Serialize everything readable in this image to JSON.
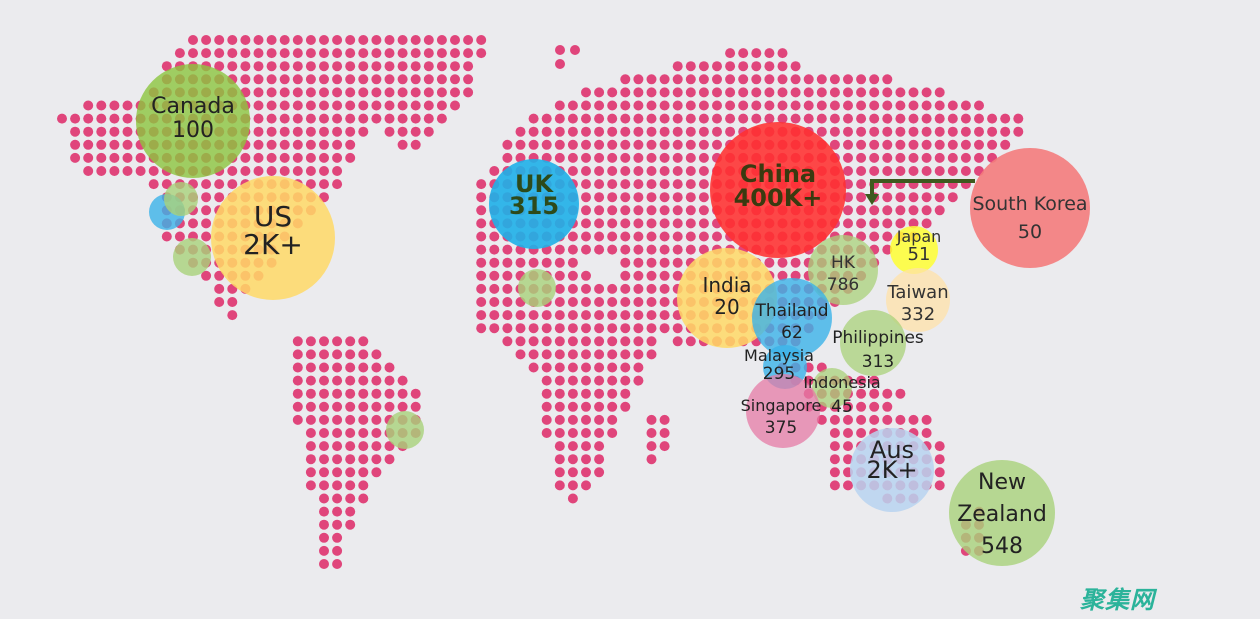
{
  "map": {
    "dot_color": "#e0457b",
    "background": "#ebebee",
    "bubbles": [
      {
        "name": "Canada",
        "value": "100",
        "color": "#8cc63f"
      },
      {
        "name": "US",
        "value": "2K+",
        "color": "#ffd966"
      },
      {
        "name": "UK",
        "value": "315",
        "color": "#1fb0e8"
      },
      {
        "name": "China",
        "value": "400K+",
        "color": "#ff3030"
      },
      {
        "name": "South Korea",
        "value": "50",
        "color": "#f47c7c"
      },
      {
        "name": "India",
        "value": "20",
        "color": "#ffd966"
      },
      {
        "name": "HK",
        "value": "786",
        "color": "#a9d27a"
      },
      {
        "name": "Japan",
        "value": "51",
        "color": "#ffff33"
      },
      {
        "name": "Taiwan",
        "value": "332",
        "color": "#ffe2a8"
      },
      {
        "name": "Thailand",
        "value": "62",
        "color": "#3bb3e8"
      },
      {
        "name": "Philippines",
        "value": "313",
        "color": "#a9d27a"
      },
      {
        "name": "Malaysia",
        "value": "295",
        "color": "#3bb3e8"
      },
      {
        "name": "Indonesia",
        "value": "45",
        "color": "#a9d27a"
      },
      {
        "name": "Singapore",
        "value": "375",
        "color": "#e57ba6"
      },
      {
        "name": "Aus",
        "value": "2K+",
        "color": "#b8d4f0"
      },
      {
        "name": "New Zealand",
        "value": "548",
        "color": "#a9d27a"
      }
    ],
    "arrow_color": "#3d5a1e"
  },
  "watermark": "聚集网"
}
